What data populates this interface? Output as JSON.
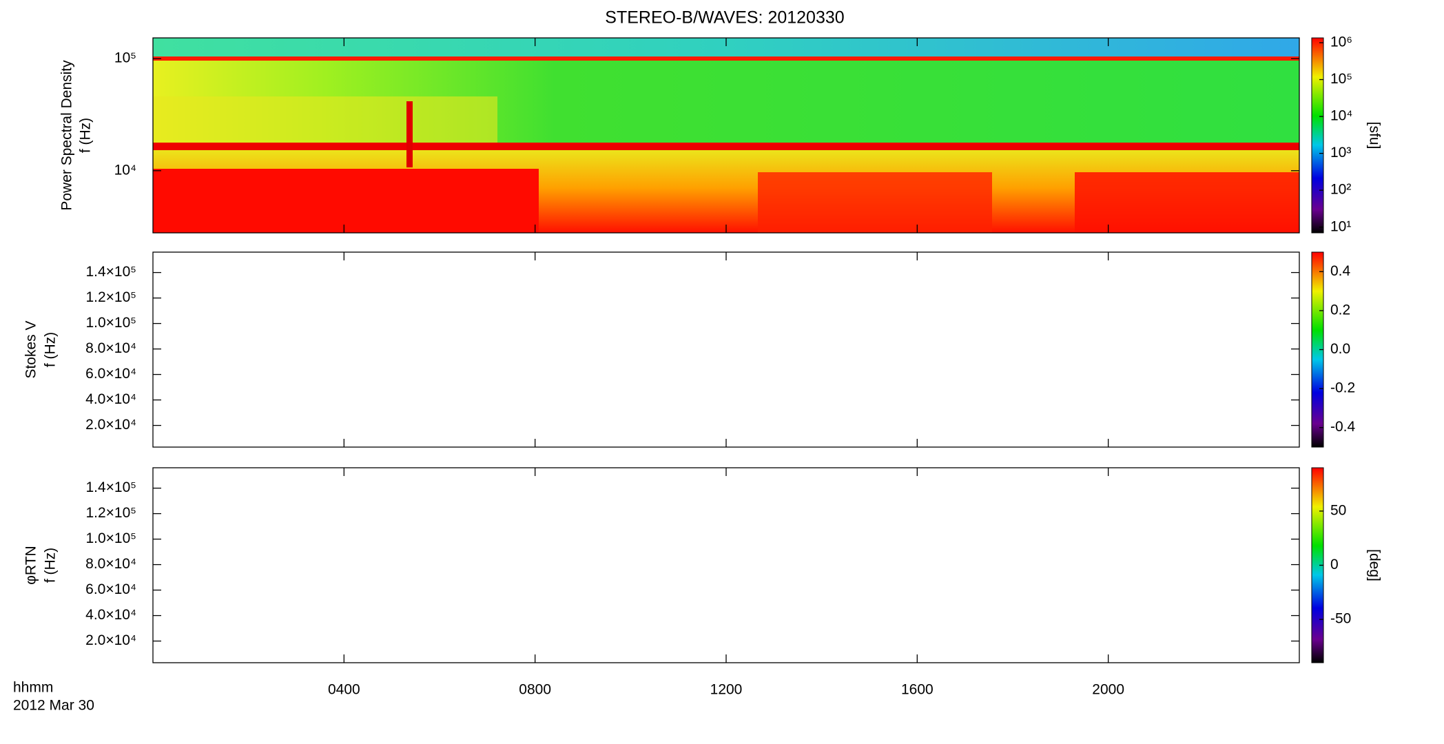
{
  "chart_data": [
    {
      "type": "heatmap",
      "title": "STEREO-B/WAVES: 20120330",
      "ylabel": [
        "Power Spectral Density",
        "f (Hz)"
      ],
      "ylog": true,
      "ylim": [
        2790,
        153000
      ],
      "yticks": [
        {
          "value": 10000,
          "label": "10⁴"
        },
        {
          "value": 100000,
          "label": "10⁵"
        }
      ],
      "xlim": [
        0,
        24
      ],
      "xticks": [
        {
          "value": 4,
          "label": "0400"
        },
        {
          "value": 8,
          "label": "0800"
        },
        {
          "value": 12,
          "label": "1200"
        },
        {
          "value": 16,
          "label": "1600"
        },
        {
          "value": 20,
          "label": "2000"
        }
      ],
      "colorbar": {
        "log": true,
        "lim": [
          7,
          1350000
        ],
        "label": "[sfu]",
        "ticks": [
          {
            "value": 10,
            "label": "10¹"
          },
          {
            "value": 100,
            "label": "10²"
          },
          {
            "value": 1000,
            "label": "10³"
          },
          {
            "value": 10000,
            "label": "10⁴"
          },
          {
            "value": 100000,
            "label": "10⁵"
          },
          {
            "value": 1000000,
            "label": "10⁶"
          }
        ]
      }
    },
    {
      "type": "heatmap",
      "ylabel": [
        "Stokes V",
        "f (Hz)"
      ],
      "ylog": false,
      "ylim": [
        3000,
        156000
      ],
      "yticks": [
        {
          "value": 20000,
          "label": "2.0×10⁴"
        },
        {
          "value": 40000,
          "label": "4.0×10⁴"
        },
        {
          "value": 60000,
          "label": "6.0×10⁴"
        },
        {
          "value": 80000,
          "label": "8.0×10⁴"
        },
        {
          "value": 100000,
          "label": "1.0×10⁵"
        },
        {
          "value": 120000,
          "label": "1.2×10⁵"
        },
        {
          "value": 140000,
          "label": "1.4×10⁵"
        }
      ],
      "xlim": [
        0,
        24
      ],
      "xticks": [
        {
          "value": 4,
          "label": "0400"
        },
        {
          "value": 8,
          "label": "0800"
        },
        {
          "value": 12,
          "label": "1200"
        },
        {
          "value": 16,
          "label": "1600"
        },
        {
          "value": 20,
          "label": "2000"
        }
      ],
      "colorbar": {
        "log": false,
        "lim": [
          -0.5,
          0.5
        ],
        "ticks": [
          -0.4,
          -0.2,
          {
            "value": 0,
            "label": "0.0"
          },
          0.2,
          0.4
        ]
      }
    },
    {
      "type": "heatmap",
      "ylabel": [
        "φRTN",
        "f (Hz)"
      ],
      "ylog": false,
      "ylim": [
        3000,
        156000
      ],
      "yticks": [
        {
          "value": 20000,
          "label": "2.0×10⁴"
        },
        {
          "value": 40000,
          "label": "4.0×10⁴"
        },
        {
          "value": 60000,
          "label": "6.0×10⁴"
        },
        {
          "value": 80000,
          "label": "8.0×10⁴"
        },
        {
          "value": 100000,
          "label": "1.0×10⁵"
        },
        {
          "value": 120000,
          "label": "1.2×10⁵"
        },
        {
          "value": 140000,
          "label": "1.4×10⁵"
        }
      ],
      "xlim": [
        0,
        24
      ],
      "xticks": [
        {
          "value": 4,
          "label": "0400"
        },
        {
          "value": 8,
          "label": "0800"
        },
        {
          "value": 12,
          "label": "1200"
        },
        {
          "value": 16,
          "label": "1600"
        },
        {
          "value": 20,
          "label": "2000"
        }
      ],
      "xlabel": [
        "hhmm",
        "2012 Mar 30"
      ],
      "colorbar": {
        "log": false,
        "lim": [
          -90,
          90
        ],
        "label": "[deg]",
        "ticks": [
          -50,
          0,
          50
        ]
      }
    }
  ]
}
